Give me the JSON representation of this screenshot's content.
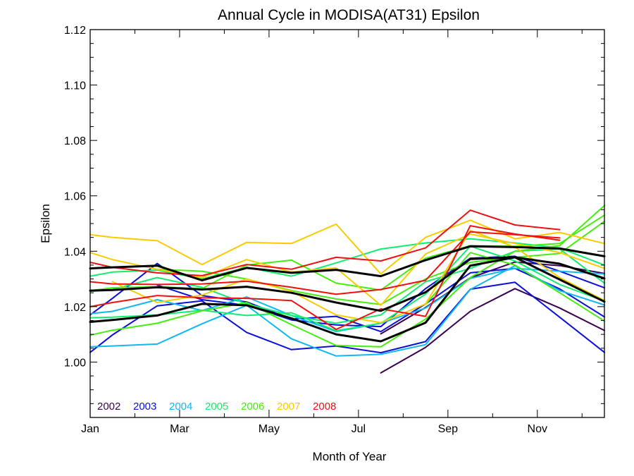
{
  "chart_data": {
    "type": "line",
    "title": "Annual Cycle in MODISA(AT31) Epsilon",
    "xlabel": "Month of Year",
    "ylabel": "Epsilon",
    "xlim": [
      0,
      11.5
    ],
    "ylim": [
      0.98,
      1.12
    ],
    "x_tick_values": [
      0,
      2,
      4,
      6,
      8,
      10
    ],
    "x_tick_labels": [
      "Jan",
      "Mar",
      "May",
      "Jul",
      "Sep",
      "Nov"
    ],
    "y_tick_values": [
      1.0,
      1.02,
      1.04,
      1.06,
      1.08,
      1.1,
      1.12
    ],
    "y_tick_labels": [
      "1.00",
      "1.02",
      "1.04",
      "1.06",
      "1.08",
      "1.10",
      "1.12"
    ],
    "grid": false,
    "legend_position": "bottom-left",
    "legend": [
      {
        "name": "2002",
        "color": "#3a0050"
      },
      {
        "name": "2003",
        "color": "#0a10d8"
      },
      {
        "name": "2004",
        "color": "#10b8f0"
      },
      {
        "name": "2005",
        "color": "#10ee70"
      },
      {
        "name": "2006",
        "color": "#44ee10"
      },
      {
        "name": "2007",
        "color": "#f8cc00"
      },
      {
        "name": "2008",
        "color": "#f01010"
      }
    ],
    "series": [
      {
        "color": "#3a0050",
        "width": 2,
        "x": [
          6.5,
          7.5,
          8.5,
          9.5,
          10.5,
          11.5
        ],
        "y": [
          0.9961,
          1.0053,
          1.0183,
          1.0265,
          1.0195,
          1.0114
        ]
      },
      {
        "color": "#3a0050",
        "width": 2,
        "x": [
          6.5,
          7.5,
          8.5,
          9.5,
          10.5,
          11.5
        ],
        "y": [
          1.0102,
          1.0197,
          1.0304,
          1.0361,
          1.0348,
          1.032
        ]
      },
      {
        "color": "#0a10d8",
        "width": 2,
        "x": [
          0,
          0.5,
          1.5,
          2.5,
          3.5,
          4.5,
          5.5,
          6.5,
          7.5,
          8.5,
          9.5,
          10.5,
          11.5
        ],
        "y": [
          1.0035,
          1.0098,
          1.0203,
          1.0221,
          1.0107,
          1.0045,
          1.0058,
          1.0034,
          1.0074,
          1.0263,
          1.0288,
          1.0162,
          1.0035
        ]
      },
      {
        "color": "#0a10d8",
        "width": 2,
        "x": [
          0,
          0.5,
          1.5,
          2.5,
          3.5,
          4.5,
          5.5,
          6.5,
          7.5,
          8.5,
          9.5,
          10.5,
          11.5
        ],
        "y": [
          1.017,
          1.023,
          1.0356,
          1.024,
          1.0217,
          1.0155,
          1.0165,
          1.011,
          1.021,
          1.0322,
          1.0338,
          1.0264,
          1.0163
        ]
      },
      {
        "color": "#0a10d8",
        "width": 2,
        "x": [
          1.5,
          2.5,
          3.5,
          4.5,
          5.5,
          6.5,
          7.5,
          8.5,
          9.5,
          10.5,
          11.5
        ],
        "y": [
          1.0278,
          1.0225,
          1.0205,
          1.0152,
          1.0134,
          1.0128,
          1.0265,
          1.0375,
          1.0382,
          1.0328,
          1.0268
        ]
      },
      {
        "color": "#10b8f0",
        "width": 2,
        "x": [
          0,
          0.5,
          1.5,
          2.5,
          3.5,
          4.5,
          5.5,
          6.5,
          7.5,
          8.5,
          9.5,
          10.5,
          11.5
        ],
        "y": [
          1.0055,
          1.0058,
          1.0065,
          1.0138,
          1.0205,
          1.0084,
          1.0022,
          1.0028,
          1.0063,
          1.0262,
          1.0348,
          1.0258,
          1.0206
        ]
      },
      {
        "color": "#10b8f0",
        "width": 2,
        "x": [
          0,
          0.5,
          1.5,
          2.5,
          3.5,
          4.5,
          5.5,
          6.5,
          7.5,
          8.5,
          9.5,
          10.5,
          11.5
        ],
        "y": [
          1.0175,
          1.0183,
          1.0225,
          1.0186,
          1.0235,
          1.0168,
          1.011,
          1.014,
          1.0195,
          1.0302,
          1.0338,
          1.0328,
          1.0318
        ]
      },
      {
        "color": "#10ee70",
        "width": 2,
        "x": [
          0,
          0.5,
          1.5,
          2.5,
          3.5,
          4.5,
          5.5,
          6.5,
          7.5,
          8.5,
          9.5,
          10.5,
          11.5
        ],
        "y": [
          1.031,
          1.0325,
          1.0332,
          1.03,
          1.0342,
          1.031,
          1.0358,
          1.0408,
          1.043,
          1.0445,
          1.043,
          1.0412,
          1.035
        ]
      },
      {
        "color": "#10ee70",
        "width": 2,
        "x": [
          0,
          0.5,
          1.5,
          2.5,
          3.5,
          4.5,
          5.5,
          6.5,
          7.5,
          8.5,
          9.5,
          10.5,
          11.5
        ],
        "y": [
          1.016,
          1.0162,
          1.017,
          1.0187,
          1.0168,
          1.0178,
          1.0113,
          1.014,
          1.0245,
          1.0418,
          1.0365,
          1.028,
          1.022
        ]
      },
      {
        "color": "#10ee70",
        "width": 2,
        "x": [
          0,
          0.5,
          1.5,
          2.5,
          3.5,
          4.5,
          5.5,
          6.5,
          7.5,
          8.5,
          9.5,
          10.5,
          11.5
        ],
        "y": [
          1.0255,
          1.0262,
          1.0305,
          1.027,
          1.021,
          1.0168,
          1.014,
          1.017,
          1.029,
          1.0338,
          1.04,
          1.0408,
          1.0285
        ]
      },
      {
        "color": "#44ee10",
        "width": 2,
        "x": [
          0,
          0.5,
          1.5,
          2.5,
          3.5,
          4.5,
          5.5,
          6.5,
          7.5,
          8.5,
          9.5,
          10.5,
          11.5
        ],
        "y": [
          1.0097,
          1.0115,
          1.014,
          1.0185,
          1.0215,
          1.0135,
          1.006,
          1.0055,
          1.0155,
          1.0305,
          1.04,
          1.042,
          1.0565
        ]
      },
      {
        "color": "#44ee10",
        "width": 2,
        "x": [
          0,
          0.5,
          1.5,
          2.5,
          3.5,
          4.5,
          5.5,
          6.5,
          7.5,
          8.5,
          9.5,
          10.5,
          11.5
        ],
        "y": [
          1.0258,
          1.0268,
          1.0272,
          1.0265,
          1.035,
          1.0368,
          1.0285,
          1.026,
          1.0375,
          1.042,
          1.0418,
          1.0428,
          1.053
        ]
      },
      {
        "color": "#44ee10",
        "width": 2,
        "x": [
          1.5,
          2.5,
          3.5,
          4.5,
          5.5,
          6.5,
          7.5,
          8.5,
          9.5,
          10.5,
          11.5
        ],
        "y": [
          1.0335,
          1.0328,
          1.03,
          1.0258,
          1.0228,
          1.0208,
          1.03,
          1.036,
          1.0378,
          1.0392,
          1.0508
        ]
      },
      {
        "color": "#44ee10",
        "width": 2,
        "x": [
          7.5,
          8.5,
          9.5,
          10.5,
          11.5
        ],
        "y": [
          1.0208,
          1.0395,
          1.035,
          1.025,
          1.0148
        ]
      },
      {
        "color": "#f8cc00",
        "width": 2,
        "x": [
          0,
          0.5,
          1.5,
          2.5,
          3.5,
          4.5,
          5.5,
          6.5,
          7.5,
          8.5,
          9.5,
          10.5,
          11.5
        ],
        "y": [
          1.046,
          1.045,
          1.0438,
          1.0352,
          1.0432,
          1.0428,
          1.0498,
          1.0318,
          1.045,
          1.0512,
          1.0445,
          1.0468,
          1.0428
        ]
      },
      {
        "color": "#f8cc00",
        "width": 2,
        "x": [
          0,
          0.5,
          1.5,
          2.5,
          3.5,
          4.5,
          5.5,
          6.5,
          7.5,
          8.5,
          9.5,
          10.5,
          11.5
        ],
        "y": [
          1.0395,
          1.037,
          1.0335,
          1.0305,
          1.037,
          1.0325,
          1.034,
          1.0205,
          1.039,
          1.0462,
          1.0428,
          1.0395,
          1.0338
        ]
      },
      {
        "color": "#f8cc00",
        "width": 2,
        "x": [
          0.5,
          1.5,
          2.5,
          3.5,
          4.5,
          5.5,
          6.5,
          7.5,
          8.5,
          9.5,
          10.5,
          11.5
        ],
        "y": [
          1.029,
          1.0215,
          1.0242,
          1.03,
          1.0255,
          1.017,
          1.0142,
          1.021,
          1.0475,
          1.0415,
          1.0305,
          1.0222
        ]
      },
      {
        "color": "#f01010",
        "width": 2,
        "x": [
          0,
          0.5,
          1.5,
          2.5,
          3.5,
          4.5,
          5.5,
          6.5,
          7.5,
          8.5,
          9.5,
          10.5
        ],
        "y": [
          1.036,
          1.0342,
          1.0322,
          1.0312,
          1.0352,
          1.0335,
          1.0378,
          1.0365,
          1.0412,
          1.0548,
          1.0495,
          1.0478
        ]
      },
      {
        "color": "#f01010",
        "width": 2,
        "x": [
          0,
          0.5,
          1.5,
          2.5,
          3.5,
          4.5,
          5.5,
          6.5,
          7.5,
          8.5,
          9.5,
          10.5
        ],
        "y": [
          1.02,
          1.0215,
          1.024,
          1.0232,
          1.023,
          1.0222,
          1.0118,
          1.0192,
          1.0165,
          1.0492,
          1.0462,
          1.044
        ]
      },
      {
        "color": "#f01010",
        "width": 2,
        "x": [
          0,
          0.5,
          1.5,
          2.5,
          3.5,
          4.5,
          5.5,
          6.5,
          7.5,
          8.5,
          9.5,
          10.5
        ],
        "y": [
          1.029,
          1.0282,
          1.028,
          1.0282,
          1.0292,
          1.027,
          1.0245,
          1.0262,
          1.0295,
          1.047,
          1.046,
          1.0448
        ]
      },
      {
        "color": "#000000",
        "width": 3,
        "x": [
          0,
          0.5,
          1.5,
          2.5,
          3.5,
          4.5,
          5.5,
          6.5,
          7.5,
          8.5,
          9.5,
          10.5,
          11.5
        ],
        "y": [
          1.0338,
          1.0342,
          1.0348,
          1.0295,
          1.034,
          1.0322,
          1.0333,
          1.031,
          1.0368,
          1.0418,
          1.0415,
          1.041,
          1.0382
        ]
      },
      {
        "color": "#000000",
        "width": 3,
        "x": [
          0,
          0.5,
          1.5,
          2.5,
          3.5,
          4.5,
          5.5,
          6.5,
          7.5,
          8.5,
          9.5,
          10.5,
          11.5
        ],
        "y": [
          1.0258,
          1.026,
          1.027,
          1.0262,
          1.0272,
          1.025,
          1.0215,
          1.0185,
          1.0252,
          1.0372,
          1.0378,
          1.0355,
          1.0302
        ]
      },
      {
        "color": "#000000",
        "width": 3,
        "x": [
          0,
          0.5,
          1.5,
          2.5,
          3.5,
          4.5,
          5.5,
          6.5,
          7.5,
          8.5,
          9.5,
          10.5,
          11.5
        ],
        "y": [
          1.0145,
          1.0152,
          1.0168,
          1.021,
          1.0205,
          1.0158,
          1.01,
          1.0075,
          1.0142,
          1.0348,
          1.0378,
          1.0298,
          1.0218
        ]
      }
    ]
  }
}
